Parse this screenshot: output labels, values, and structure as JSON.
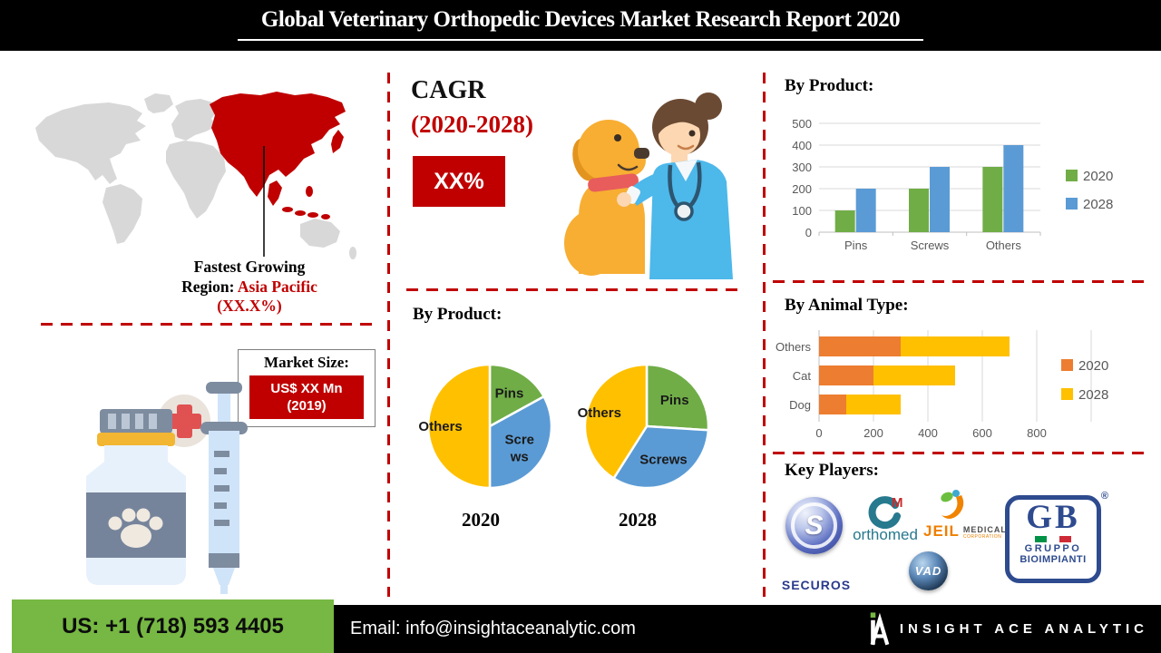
{
  "header": {
    "title": "Global Veterinary Orthopedic Devices Market Research Report 2020"
  },
  "colors": {
    "accent_red": "#C00000",
    "map_gray": "#D8D8D8",
    "green_2020": "#70AD47",
    "blue_2028": "#5B9BD5",
    "orange_2020": "#ED7D31",
    "yellow_2028": "#FFC000",
    "footer_green": "#76B843"
  },
  "left": {
    "fastest_line1": "Fastest Growing",
    "fastest_label": "Region:",
    "fastest_region": "Asia Pacific",
    "fastest_value": "(XX.X%)",
    "market_title": "Market Size:",
    "market_value": "US$ XX Mn",
    "market_year": "(2019)"
  },
  "middle": {
    "cagr_label": "CAGR",
    "cagr_period": "(2020-2028)",
    "cagr_value": "XX%",
    "pies_title": "By Product:"
  },
  "right": {
    "players_title": "Key Players:"
  },
  "players": {
    "securos_s": "S",
    "securos": "SECUROS",
    "orthomed": "orthomed",
    "orthomed_m": "M",
    "jeil": "JEIL",
    "jeil_medical": "MEDICAL",
    "jeil_corp": "CORPORATION",
    "vad": "VAD",
    "gb": "GB",
    "gb_reg": "®",
    "gruppo": "GRUPPO",
    "bioimpianti": "BIOIMPIANTI"
  },
  "footer": {
    "phone": "US: +1 (718) 593 4405",
    "email_label": "Email:",
    "email": "info@insightaceanalytic.com",
    "brand": "INSIGHT ACE ANALYTIC"
  },
  "chart_data": [
    {
      "type": "bar",
      "title": "By Product:",
      "categories": [
        "Pins",
        "Screws",
        "Others"
      ],
      "series": [
        {
          "name": "2020",
          "color": "#70AD47",
          "values": [
            100,
            200,
            300
          ]
        },
        {
          "name": "2028",
          "color": "#5B9BD5",
          "values": [
            200,
            300,
            400
          ]
        }
      ],
      "ylim": [
        0,
        500
      ],
      "yticks": [
        0,
        100,
        200,
        300,
        400,
        500
      ],
      "grid": true,
      "legend_position": "right"
    },
    {
      "type": "pie",
      "title": "2020",
      "labels": [
        "Pins",
        "Scre\nws",
        "Others"
      ],
      "values": [
        17,
        33,
        50
      ],
      "colors": [
        "#70AD47",
        "#5B9BD5",
        "#FFC000"
      ],
      "label_r": [
        0.62,
        0.56,
        0.8
      ]
    },
    {
      "type": "pie",
      "title": "2028",
      "labels": [
        "Pins",
        "Screws",
        "Others"
      ],
      "values": [
        26,
        33,
        41
      ],
      "colors": [
        "#70AD47",
        "#5B9BD5",
        "#FFC000"
      ],
      "label_r": [
        0.62,
        0.6,
        0.8
      ]
    },
    {
      "type": "bar",
      "orientation": "horizontal",
      "stacked": true,
      "title": "By Animal Type:",
      "categories": [
        "Others",
        "Cat",
        "Dog"
      ],
      "series": [
        {
          "name": "2020",
          "color": "#ED7D31",
          "values": [
            300,
            200,
            100
          ]
        },
        {
          "name": "2028",
          "color": "#FFC000",
          "values": [
            400,
            300,
            200
          ]
        }
      ],
      "xlim": [
        0,
        1000
      ],
      "xticks": [
        0,
        200,
        400,
        600,
        800
      ],
      "grid": true,
      "legend_position": "right"
    }
  ]
}
